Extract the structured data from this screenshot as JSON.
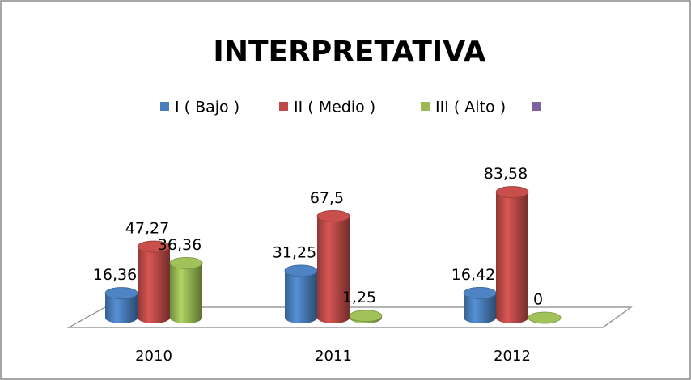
{
  "chart_data": {
    "type": "bar3d",
    "title": "INTERPRETATIVA",
    "categories": [
      "2010",
      "2011",
      "2012"
    ],
    "series": [
      {
        "name": "I ( Bajo )",
        "color": "#4a7ebb",
        "values": [
          16.36,
          31.25,
          16.42
        ],
        "value_labels": [
          "16,36",
          "31,25",
          "16,42"
        ]
      },
      {
        "name": "II ( Medio )",
        "color": "#be4b48",
        "values": [
          47.27,
          67.5,
          83.58
        ],
        "value_labels": [
          "47,27",
          "67,5",
          "83,58"
        ]
      },
      {
        "name": "III ( Alto )",
        "color": "#98b954",
        "values": [
          36.36,
          1.25,
          0
        ],
        "value_labels": [
          "36,36",
          "1,25",
          "0"
        ]
      },
      {
        "name": null,
        "color": "#7d60a0",
        "values": [
          null,
          null,
          null
        ]
      }
    ],
    "legend": "top"
  }
}
